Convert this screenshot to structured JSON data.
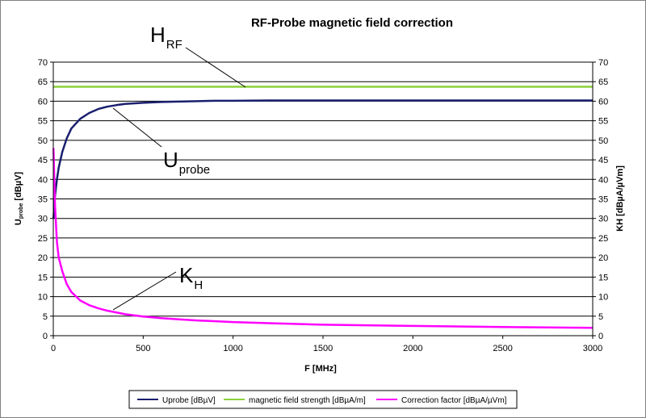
{
  "chart_data": {
    "type": "line",
    "title": "RF-Probe magnetic field correction",
    "xlabel": "F [MHz]",
    "ylabel_main": "U",
    "ylabel_sub": "probe",
    "ylabel_unit": " [dBµV]",
    "y2label": "KH [dBµA/µVm]",
    "xlim": [
      0,
      3000
    ],
    "ylim": [
      0,
      70
    ],
    "y2lim": [
      0,
      70
    ],
    "xticks": [
      0,
      500,
      1000,
      1500,
      2000,
      2500,
      3000
    ],
    "yticks": [
      0,
      5,
      10,
      15,
      20,
      25,
      30,
      35,
      40,
      45,
      50,
      55,
      60,
      65,
      70
    ],
    "grid": "horizontal",
    "legend": "bottom",
    "series": [
      {
        "name": "Uprobe [dBµV]",
        "color": "#1a1f6e",
        "x": [
          1,
          10,
          20,
          30,
          50,
          75,
          100,
          150,
          200,
          250,
          300,
          350,
          400,
          500,
          600,
          700,
          800,
          900,
          1000,
          1200,
          1400,
          1600,
          2000,
          2500,
          3000
        ],
        "y": [
          30,
          36,
          40,
          43,
          47,
          50.5,
          53,
          55.5,
          57,
          58,
          58.6,
          59,
          59.3,
          59.6,
          59.8,
          59.9,
          60,
          60.1,
          60.1,
          60.2,
          60.2,
          60.2,
          60.2,
          60.2,
          60.2
        ]
      },
      {
        "name": "magnetic field strength [dBµA/m]",
        "color": "#8cd23c",
        "x": [
          0,
          3000
        ],
        "y": [
          63.7,
          63.7
        ]
      },
      {
        "name": "Correction factor [dBµA/µVm]",
        "color": "#ff00ff",
        "x": [
          1,
          10,
          20,
          30,
          50,
          75,
          100,
          150,
          200,
          250,
          300,
          400,
          500,
          600,
          700,
          800,
          1000,
          1200,
          1500,
          2000,
          2500,
          3000
        ],
        "y": [
          48,
          33,
          24,
          20,
          16.5,
          13.2,
          11.2,
          9,
          7.8,
          7,
          6.4,
          5.5,
          4.9,
          4.5,
          4.2,
          3.9,
          3.5,
          3.2,
          2.8,
          2.5,
          2.2,
          2.0
        ]
      }
    ],
    "annotations": [
      {
        "main": "H",
        "sub": "RF"
      },
      {
        "main": "U",
        "sub": "probe"
      },
      {
        "main": "K",
        "sub": "H"
      }
    ]
  }
}
